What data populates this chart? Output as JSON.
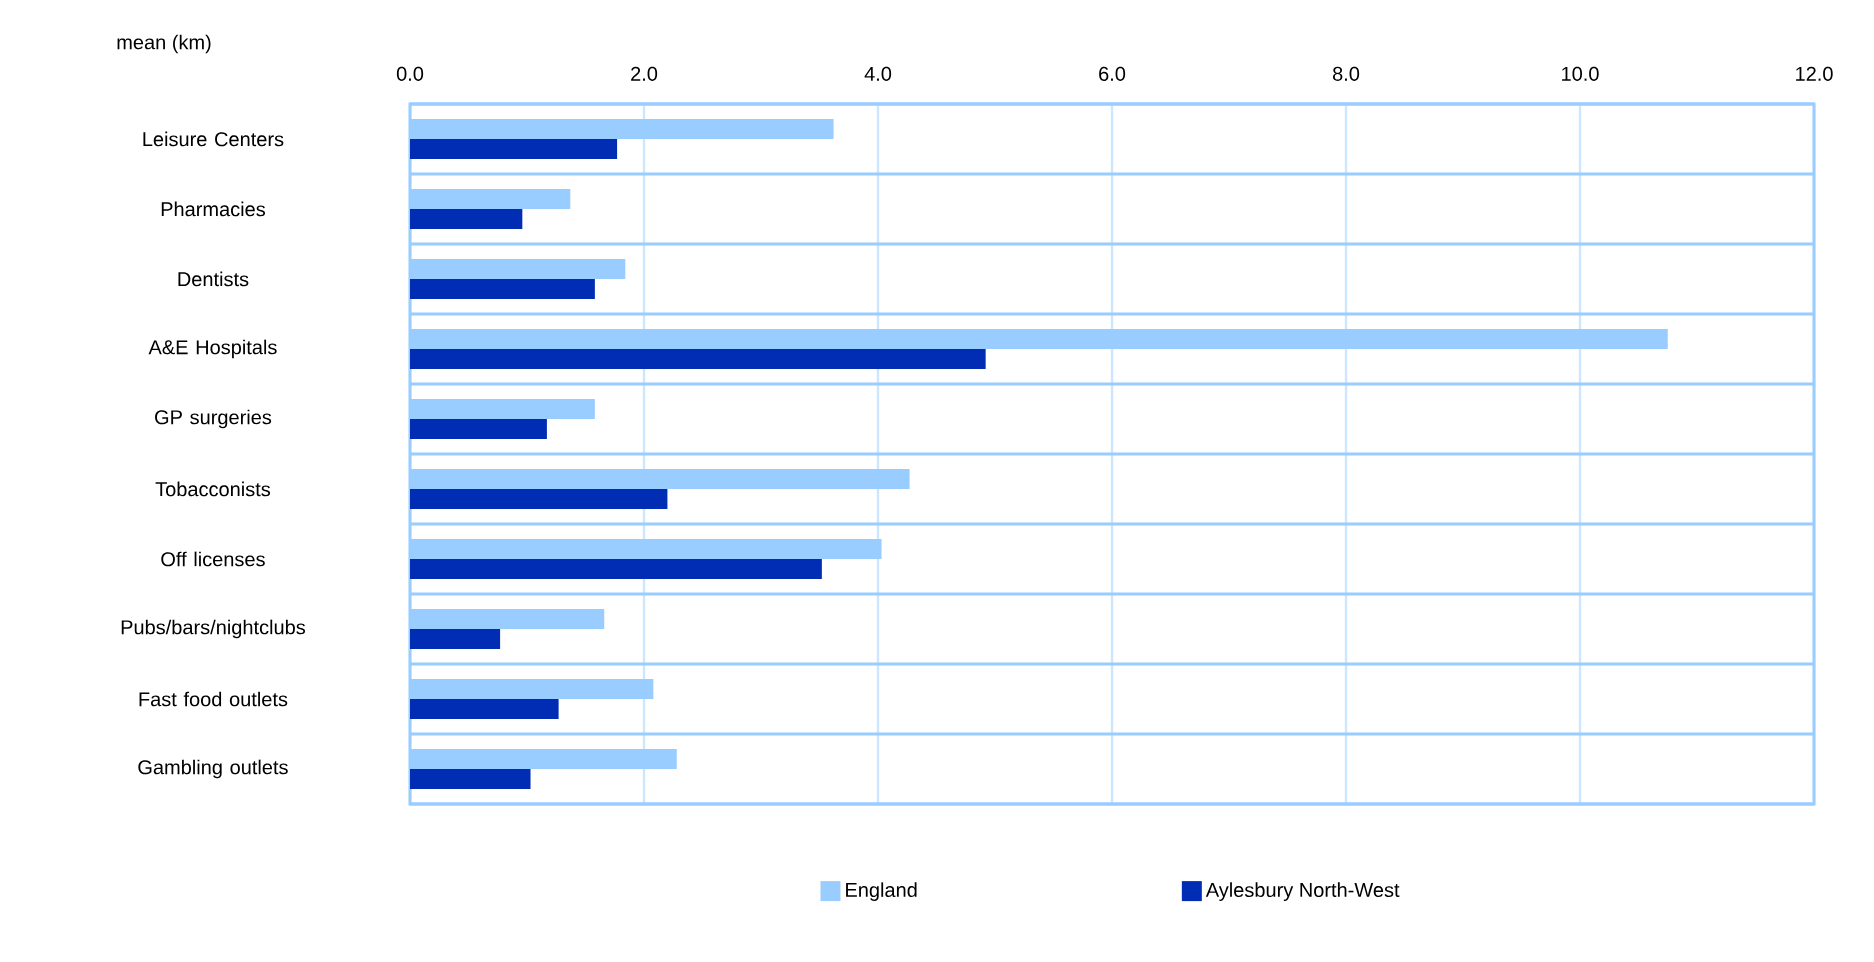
{
  "chart_data": {
    "type": "bar",
    "orientation": "horizontal",
    "xlabel": "mean (km)",
    "categories": [
      "Leisure Centers",
      "Pharmacies",
      "Dentists",
      "A&E Hospitals",
      "GP surgeries",
      "Tobacconists",
      "Off licenses",
      "Pubs/bars/nightclubs",
      "Fast food outlets",
      "Gambling outlets"
    ],
    "series": [
      {
        "name": "England",
        "color": "#99ccff",
        "values": [
          3.62,
          1.37,
          1.84,
          10.75,
          1.58,
          4.27,
          4.03,
          1.66,
          2.08,
          2.28
        ]
      },
      {
        "name": "Aylesbury North-West",
        "color": "#002db3",
        "values": [
          1.77,
          0.96,
          1.58,
          4.92,
          1.17,
          2.2,
          3.52,
          0.77,
          1.27,
          1.03
        ]
      }
    ],
    "xlim": [
      0,
      12
    ],
    "xticks": [
      {
        "value": 0,
        "label": "0.0"
      },
      {
        "value": 2,
        "label": "2.0"
      },
      {
        "value": 4,
        "label": "4.0"
      },
      {
        "value": 6,
        "label": "6.0"
      },
      {
        "value": 8,
        "label": "8.0"
      },
      {
        "value": 10,
        "label": "10.0"
      },
      {
        "value": 12,
        "label": "12.0"
      }
    ],
    "grid": true,
    "legend": "bottom"
  }
}
